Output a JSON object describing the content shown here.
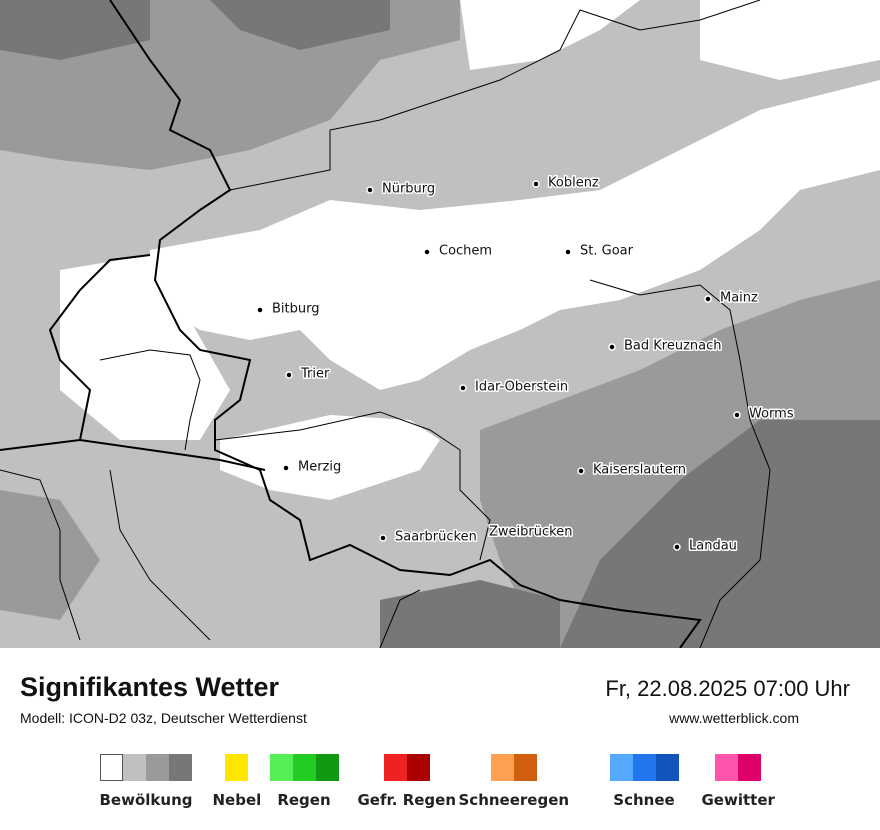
{
  "header": {
    "title": "Signifikantes Wetter",
    "subtitle": "Modell: ICON-D2 03z, Deutscher Wetterdienst",
    "date": "Fr, 22.08.2025 07:00 Uhr",
    "url": "www.wetterblick.com"
  },
  "cities": [
    "Nürburg",
    "Koblenz",
    "Cochem",
    "St. Goar",
    "Bitburg",
    "Mainz",
    "Bad Kreuznach",
    "Trier",
    "Idar-Oberstein",
    "Worms",
    "Merzig",
    "Kaiserslautern",
    "Saarbrücken",
    "Zweibrücken",
    "Landau"
  ],
  "legend": [
    {
      "label": "Bewölkung",
      "colors": [
        "#ffffff",
        "#c0c0c0",
        "#9a9a9a",
        "#777777"
      ]
    },
    {
      "label": "Nebel",
      "colors": [
        "#ffe600"
      ]
    },
    {
      "label": "Regen",
      "colors": [
        "#55ee55",
        "#22cc22",
        "#119911"
      ]
    },
    {
      "label": "Gefr. Regen",
      "colors": [
        "#ee2222",
        "#aa0000"
      ]
    },
    {
      "label": "Schneeregen",
      "colors": [
        "#ffa050",
        "#d06010"
      ]
    },
    {
      "label": "Schnee",
      "colors": [
        "#55aaff",
        "#2277ee",
        "#1155bb"
      ]
    },
    {
      "label": "Gewitter",
      "colors": [
        "#ff55aa",
        "#e0006a"
      ]
    }
  ]
}
